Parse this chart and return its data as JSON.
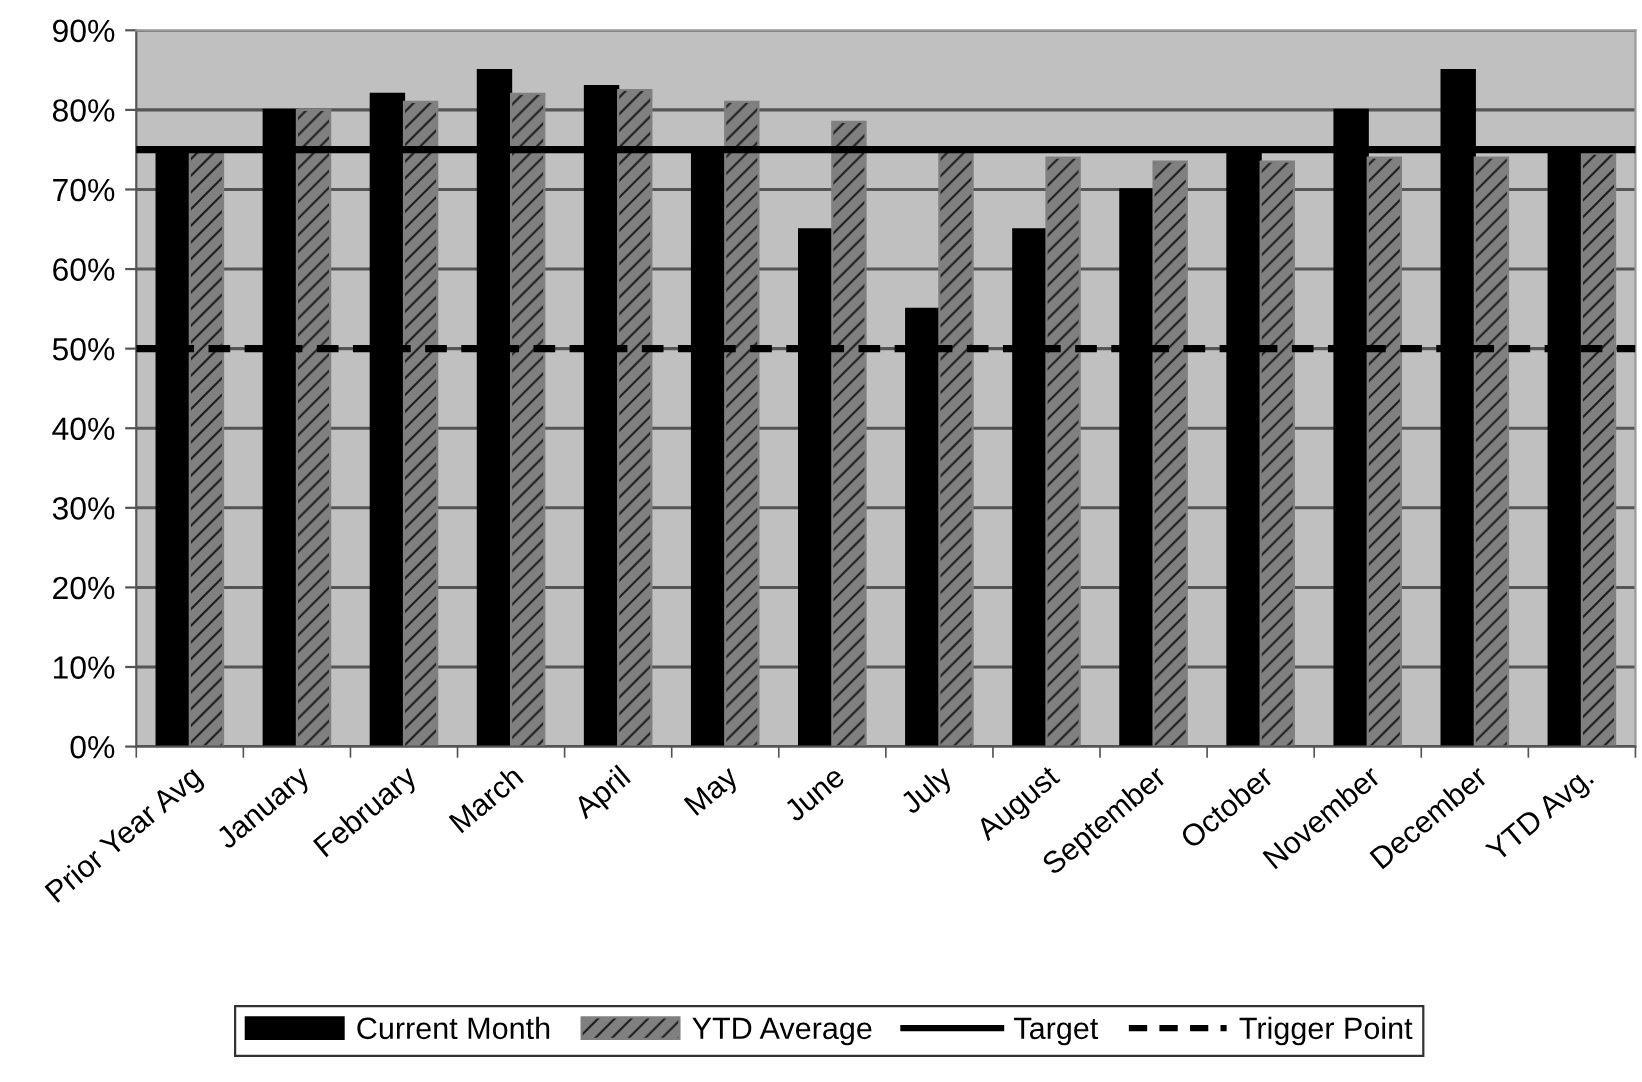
{
  "chart_data": {
    "type": "bar",
    "categories": [
      "Prior Year Avg",
      "January",
      "February",
      "March",
      "April",
      "May",
      "June",
      "July",
      "August",
      "September",
      "October",
      "November",
      "December",
      "YTD Avg."
    ],
    "series": [
      {
        "name": "Current Month",
        "color": "#000000",
        "values": [
          75,
          80,
          82,
          85,
          83,
          75,
          65,
          55,
          65,
          70,
          75,
          80,
          85,
          75
        ]
      },
      {
        "name": "YTD Average",
        "color": "#808080",
        "values": [
          75,
          80,
          81,
          82,
          82.5,
          81,
          78.5,
          75,
          74,
          73.5,
          73.5,
          74,
          74,
          74.5
        ]
      }
    ],
    "ylim": [
      0,
      90
    ],
    "yticks": [
      {
        "value": 0,
        "label": "0%"
      },
      {
        "value": 10,
        "label": "10%"
      },
      {
        "value": 20,
        "label": "20%"
      },
      {
        "value": 30,
        "label": "30%"
      },
      {
        "value": 40,
        "label": "40%"
      },
      {
        "value": 50,
        "label": "50%"
      },
      {
        "value": 60,
        "label": "60%"
      },
      {
        "value": 70,
        "label": "70%"
      },
      {
        "value": 80,
        "label": "80%"
      },
      {
        "value": 90,
        "label": "90%"
      }
    ],
    "grid": "y",
    "legend": "bottom",
    "ref_lines": [
      {
        "axis": "y",
        "value": 75,
        "label": "Target",
        "color": "#000000",
        "line_style": "solid"
      },
      {
        "axis": "y",
        "value": 50,
        "label": "Trigger Point",
        "color": "#000000",
        "line_style": "dashed"
      }
    ]
  }
}
